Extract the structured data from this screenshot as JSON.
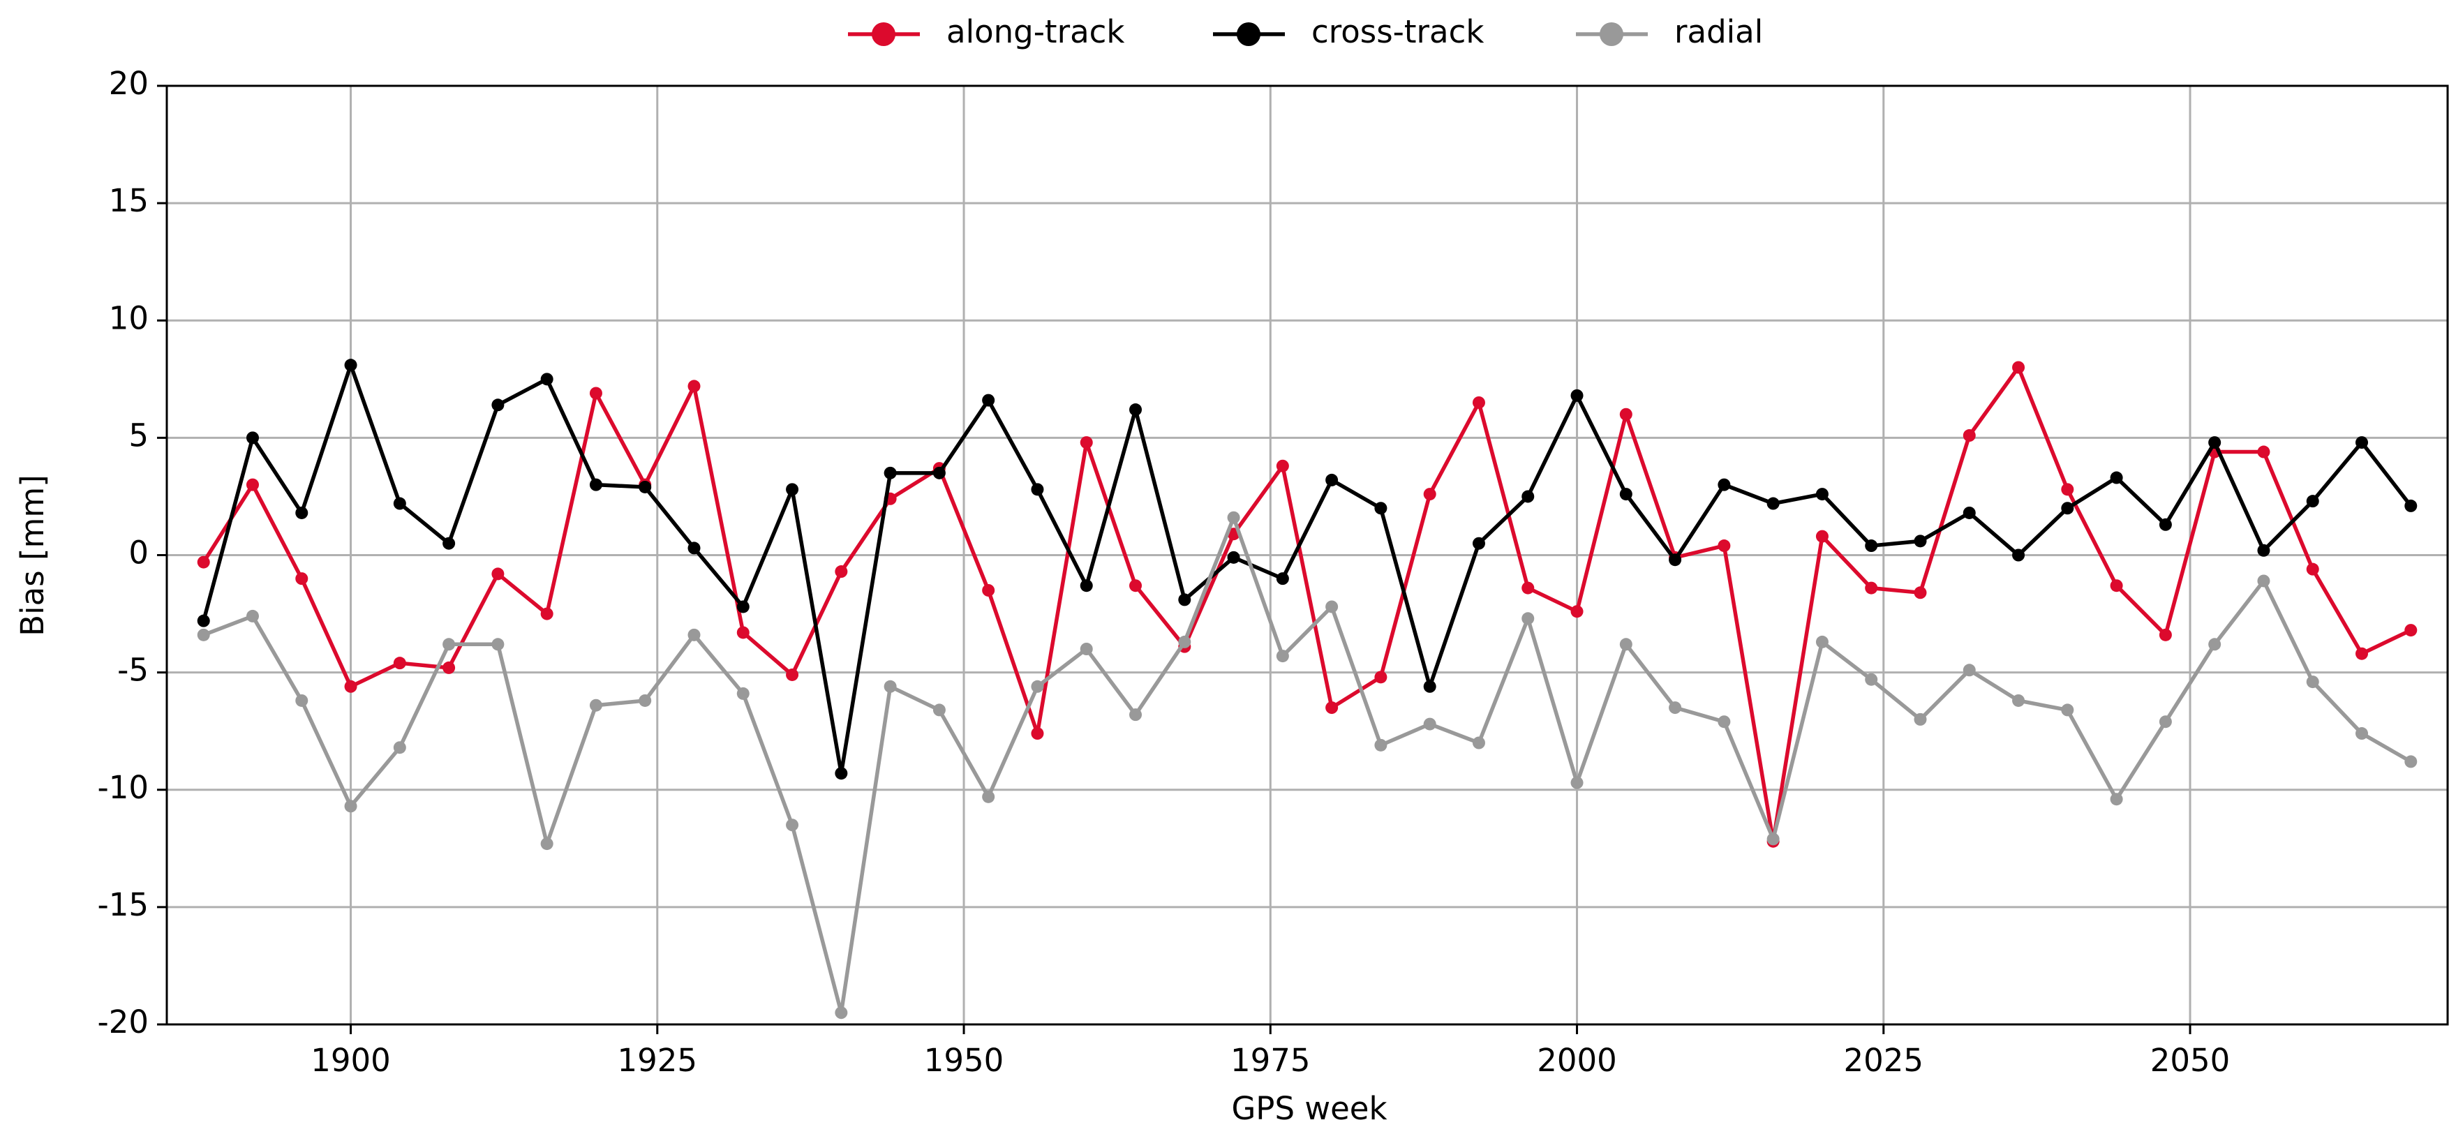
{
  "chart_data": {
    "type": "line",
    "xlabel": "GPS week",
    "ylabel": "Bias [mm]",
    "x": [
      1888,
      1892,
      1896,
      1900,
      1904,
      1908,
      1912,
      1916,
      1920,
      1924,
      1928,
      1932,
      1936,
      1940,
      1944,
      1948,
      1952,
      1956,
      1960,
      1964,
      1968,
      1972,
      1976,
      1980,
      1984,
      1988,
      1992,
      1996,
      2000,
      2004,
      2008,
      2012,
      2016,
      2020,
      2024,
      2028,
      2032,
      2036,
      2040,
      2044,
      2048,
      2052,
      2056,
      2060,
      2064,
      2068
    ],
    "series": [
      {
        "name": "along-track",
        "color": "#dc0a2d",
        "values": [
          -0.3,
          3.0,
          -1.0,
          -5.6,
          -4.6,
          -4.8,
          -0.8,
          -2.5,
          6.9,
          3.0,
          7.2,
          -3.3,
          -5.1,
          -0.7,
          2.4,
          3.7,
          -1.5,
          -7.6,
          4.8,
          -1.3,
          -3.9,
          0.9,
          3.8,
          -6.5,
          -5.2,
          2.6,
          6.5,
          -1.4,
          -2.4,
          6.0,
          -0.1,
          0.4,
          -12.2,
          0.8,
          -1.4,
          -1.6,
          5.1,
          8.0,
          2.8,
          -1.3,
          -3.4,
          4.4,
          4.4,
          -0.6,
          -4.2,
          -3.2
        ]
      },
      {
        "name": "cross-track",
        "color": "#000000",
        "values": [
          -2.8,
          5.0,
          1.8,
          8.1,
          2.2,
          0.5,
          6.4,
          7.5,
          3.0,
          2.9,
          0.3,
          -2.2,
          2.8,
          -9.3,
          3.5,
          3.5,
          6.6,
          2.8,
          -1.3,
          6.2,
          -1.9,
          -0.1,
          -1.0,
          3.2,
          2.0,
          -5.6,
          0.5,
          2.5,
          6.8,
          2.6,
          -0.2,
          3.0,
          2.2,
          2.6,
          0.4,
          0.6,
          1.8,
          0.0,
          2.0,
          3.3,
          1.3,
          4.8,
          0.2,
          2.3,
          4.8,
          2.1
        ]
      },
      {
        "name": "radial",
        "color": "#999999",
        "values": [
          -3.4,
          -2.6,
          -6.2,
          -10.7,
          -8.2,
          -3.8,
          -3.8,
          -12.3,
          -6.4,
          -6.2,
          -3.4,
          -5.9,
          -11.5,
          -19.5,
          -5.6,
          -6.6,
          -10.3,
          -5.6,
          -4.0,
          -6.8,
          -3.7,
          1.6,
          -4.3,
          -2.2,
          -8.1,
          -7.2,
          -8.0,
          -2.7,
          -9.7,
          -3.8,
          -6.5,
          -7.1,
          -12.1,
          -3.7,
          -5.3,
          -7.0,
          -4.9,
          -6.2,
          -6.6,
          -10.4,
          -7.1,
          -3.8,
          -1.1,
          -5.4,
          -7.6,
          -8.8
        ]
      }
    ],
    "xlim": [
      1885,
      2071
    ],
    "xticks": [
      1900,
      1925,
      1950,
      1975,
      2000,
      2025,
      2050
    ],
    "ylim": [
      -20,
      20
    ],
    "yticks": [
      -20,
      -15,
      -10,
      -5,
      0,
      5,
      10,
      15,
      20
    ],
    "grid": true,
    "legend": "top"
  }
}
